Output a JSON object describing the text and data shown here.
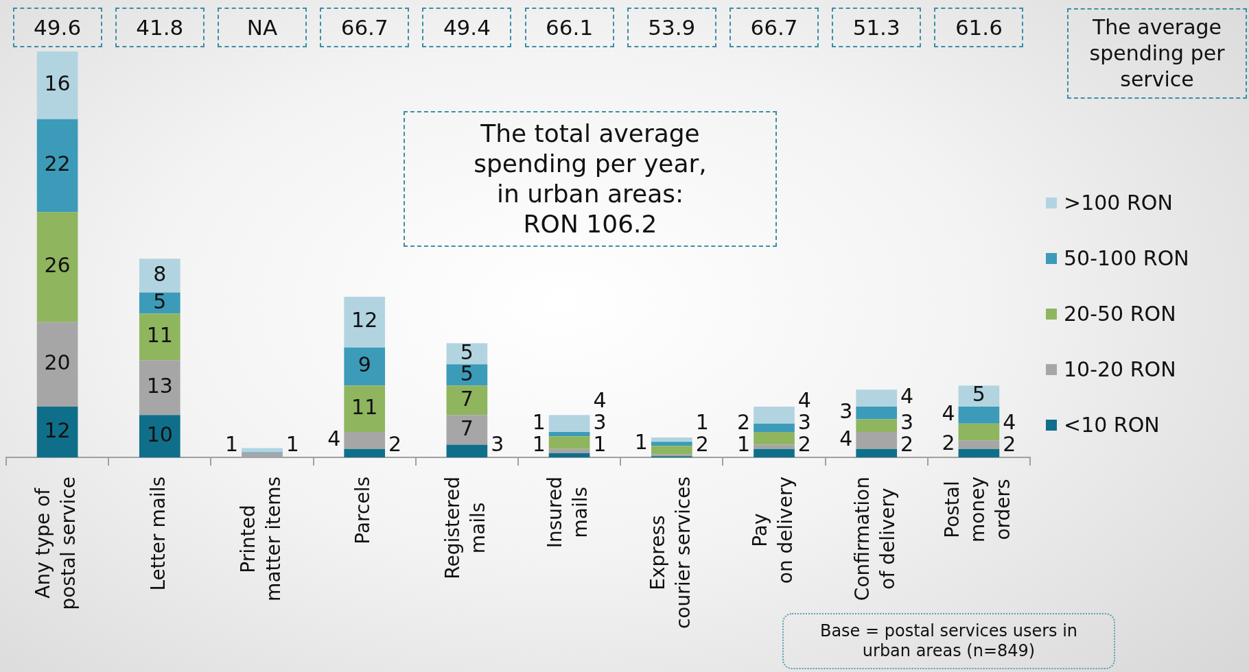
{
  "chart_data": {
    "type": "bar",
    "stacked": true,
    "legend": "right",
    "categories": [
      "Any type of\npostal service",
      "Letter mails",
      "Printed\nmatter items",
      "Parcels",
      "Registered\nmails",
      "Insured\nmails",
      "Express\ncourier services",
      "Pay\non delivery",
      "Confirmation\nof delivery",
      "Postal\nmoney\norders"
    ],
    "series": [
      {
        "name": "<10 RON",
        "color": "#0f6f8a",
        "values": [
          12,
          10,
          null,
          2,
          3,
          1,
          0.3,
          2,
          2,
          2
        ],
        "value_labels": [
          "12",
          "10",
          null,
          "2",
          "3",
          "1",
          null,
          "2",
          "2",
          "2"
        ]
      },
      {
        "name": "10-20 RON",
        "color": "#a6a6a6",
        "values": [
          20,
          13,
          1,
          4,
          7,
          1,
          0.4,
          1,
          4,
          2
        ],
        "value_labels": [
          "20",
          "13",
          "1",
          "4",
          "7",
          "1",
          null,
          "1",
          "4",
          "2"
        ]
      },
      {
        "name": "20-50 RON",
        "color": "#8fb55f",
        "values": [
          26,
          11,
          null,
          11,
          7,
          3,
          2,
          3,
          3,
          4
        ],
        "value_labels": [
          "26",
          "11",
          null,
          "11",
          "7",
          "3",
          "2",
          "3",
          "3",
          "4"
        ]
      },
      {
        "name": "50-100 RON",
        "color": "#3c9bb8",
        "values": [
          22,
          5,
          0.2,
          9,
          5,
          1,
          1,
          2,
          3,
          4
        ],
        "value_labels": [
          "22",
          "5",
          null,
          "9",
          "5",
          "1",
          "1",
          "2",
          "3",
          "4"
        ]
      },
      {
        "name": ">100 RON",
        "color": "#b2d4e1",
        "values": [
          16,
          8,
          1,
          12,
          5,
          4,
          1,
          4,
          4,
          5
        ],
        "value_labels": [
          "16",
          "8",
          "1",
          "12",
          "5",
          "4",
          "1",
          "4",
          "4",
          "5"
        ]
      }
    ],
    "annotations": [
      "49.6",
      "41.8",
      "NA",
      "66.7",
      "49.4",
      "66.1",
      "53.9",
      "66.7",
      "51.3",
      "61.6",
      "The average spending per service",
      "The total average\nspending per year,\nin urban areas:\nRON 106.2",
      "Base = postal services users in\nurban areas (n=849)"
    ]
  }
}
